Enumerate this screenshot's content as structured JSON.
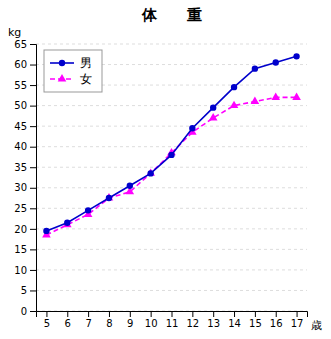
{
  "chart_data": {
    "type": "line",
    "title": "体　　重",
    "y_label": "kg",
    "x_label": "歳",
    "x": [
      5,
      6,
      7,
      8,
      9,
      10,
      11,
      12,
      13,
      14,
      15,
      16,
      17
    ],
    "series": [
      {
        "name": "男",
        "color": "#0000CC",
        "marker": "circle",
        "line_style": "solid",
        "values": [
          19.5,
          21.5,
          24.5,
          27.5,
          30.5,
          33.5,
          38.0,
          44.5,
          49.5,
          54.5,
          59.0,
          60.5,
          62.0
        ]
      },
      {
        "name": "女",
        "color": "#FF00FF",
        "marker": "triangle",
        "line_style": "dashed",
        "values": [
          18.5,
          21.0,
          23.5,
          27.5,
          29.0,
          33.5,
          38.5,
          43.5,
          47.0,
          50.0,
          51.0,
          52.0,
          52.0
        ]
      }
    ],
    "xlim": [
      4.5,
      17.5
    ],
    "xticks": [
      5,
      6,
      7,
      8,
      9,
      10,
      11,
      12,
      13,
      14,
      15,
      16,
      17
    ],
    "ylim": [
      0,
      65
    ],
    "yticks": [
      0,
      5,
      10,
      15,
      20,
      25,
      30,
      35,
      40,
      45,
      50,
      55,
      60,
      65
    ],
    "grid": "y",
    "legend": "upper left"
  }
}
